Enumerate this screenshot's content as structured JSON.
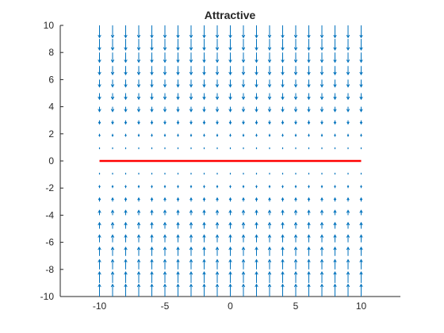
{
  "chart_data": {
    "type": "quiver",
    "title": "Attractive",
    "xlabel": "",
    "ylabel": "",
    "xlim": [
      -13,
      13
    ],
    "ylim": [
      -10,
      10
    ],
    "xticks": [
      -10,
      -5,
      0,
      5,
      10
    ],
    "yticks": [
      -10,
      -8,
      -6,
      -4,
      -2,
      0,
      2,
      4,
      6,
      8,
      10
    ],
    "grid": false,
    "vector_field": {
      "x_range": [
        -10,
        10
      ],
      "y_range": [
        -10,
        10
      ],
      "step": 1,
      "direction": "toward y = 0 (u = 0, v = -y)",
      "color": "#0072BD"
    },
    "series": [
      {
        "type": "line",
        "x": [
          -10,
          10
        ],
        "y": [
          0,
          0
        ],
        "color": "#FF0000"
      }
    ]
  }
}
